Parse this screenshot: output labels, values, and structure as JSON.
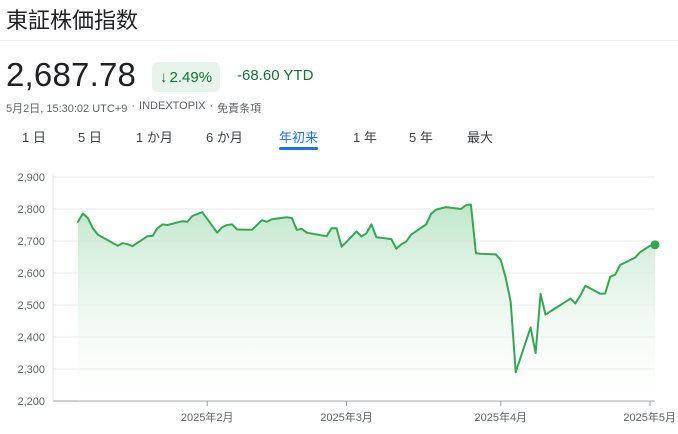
{
  "header": {
    "title": "東証株価指数"
  },
  "quote": {
    "price": "2,687.78",
    "change_percent": "2.49%",
    "change_arrow_icon": "arrow-down-icon",
    "change_abs": "-68.60 YTD",
    "meta_time": "5月2日, 15:30:02 UTC+9",
    "meta_sep1": "·",
    "meta_ticker": "INDEXTOPIX",
    "meta_sep2": "·",
    "meta_disclaimer": "免責条項"
  },
  "tabs": [
    {
      "label": "1 日",
      "active": false
    },
    {
      "label": "5 日",
      "active": false
    },
    {
      "label": "1 か月",
      "active": false
    },
    {
      "label": "6 か月",
      "active": false
    },
    {
      "label": "年初来",
      "active": true
    },
    {
      "label": "1 年",
      "active": false
    },
    {
      "label": "5 年",
      "active": false
    },
    {
      "label": "最大",
      "active": false
    }
  ],
  "colors": {
    "line": "#34a853",
    "fill_top": "#b9e4c5",
    "fill_bottom": "#ffffff",
    "positive_text": "#137333",
    "chip_bg": "#e6f4ea",
    "active_tab": "#1a73e8"
  },
  "chart_data": {
    "type": "area",
    "title": "",
    "xlabel": "",
    "ylabel": "",
    "ylim": [
      2200,
      2900
    ],
    "yticks": [
      "2,900",
      "2,800",
      "2,700",
      "2,600",
      "2,500",
      "2,400",
      "2,300",
      "2,200"
    ],
    "ytick_values": [
      2900,
      2800,
      2700,
      2600,
      2500,
      2400,
      2300,
      2200
    ],
    "xticks": [
      "2025年2月",
      "2025年3月",
      "2025年4月",
      "2025年5月"
    ],
    "grid": true,
    "x": [
      "2025-01-06",
      "2025-01-07",
      "2025-01-08",
      "2025-01-09",
      "2025-01-10",
      "2025-01-14",
      "2025-01-15",
      "2025-01-16",
      "2025-01-17",
      "2025-01-20",
      "2025-01-21",
      "2025-01-22",
      "2025-01-23",
      "2025-01-24",
      "2025-01-27",
      "2025-01-28",
      "2025-01-29",
      "2025-01-30",
      "2025-01-31",
      "2025-02-03",
      "2025-02-04",
      "2025-02-05",
      "2025-02-06",
      "2025-02-07",
      "2025-02-10",
      "2025-02-12",
      "2025-02-13",
      "2025-02-14",
      "2025-02-17",
      "2025-02-18",
      "2025-02-19",
      "2025-02-20",
      "2025-02-21",
      "2025-02-25",
      "2025-02-26",
      "2025-02-27",
      "2025-02-28",
      "2025-03-03",
      "2025-03-04",
      "2025-03-05",
      "2025-03-06",
      "2025-03-07",
      "2025-03-10",
      "2025-03-11",
      "2025-03-12",
      "2025-03-13",
      "2025-03-14",
      "2025-03-17",
      "2025-03-18",
      "2025-03-19",
      "2025-03-21",
      "2025-03-24",
      "2025-03-25",
      "2025-03-26",
      "2025-03-27",
      "2025-03-28",
      "2025-03-31",
      "2025-04-01",
      "2025-04-02",
      "2025-04-03",
      "2025-04-04",
      "2025-04-07",
      "2025-04-08",
      "2025-04-09",
      "2025-04-10",
      "2025-04-11",
      "2025-04-14",
      "2025-04-15",
      "2025-04-16",
      "2025-04-17",
      "2025-04-18",
      "2025-04-21",
      "2025-04-22",
      "2025-04-23",
      "2025-04-24",
      "2025-04-25",
      "2025-04-28",
      "2025-04-29",
      "2025-04-30",
      "2025-05-01",
      "2025-05-02"
    ],
    "values": [
      2760,
      2786,
      2772,
      2740,
      2720,
      2685,
      2693,
      2690,
      2684,
      2715,
      2716,
      2740,
      2752,
      2750,
      2762,
      2760,
      2778,
      2784,
      2790,
      2726,
      2743,
      2750,
      2752,
      2736,
      2735,
      2765,
      2760,
      2768,
      2774,
      2772,
      2735,
      2738,
      2726,
      2715,
      2740,
      2740,
      2682,
      2730,
      2714,
      2724,
      2752,
      2712,
      2706,
      2676,
      2690,
      2698,
      2720,
      2752,
      2785,
      2798,
      2806,
      2800,
      2812,
      2814,
      2662,
      2660,
      2658,
      2640,
      2585,
      2510,
      2290,
      2430,
      2350,
      2535,
      2470,
      2480,
      2510,
      2520,
      2505,
      2530,
      2560,
      2535,
      2536,
      2588,
      2595,
      2625,
      2648,
      2665,
      2675,
      2685,
      2688
    ],
    "last_point_marker": true
  }
}
